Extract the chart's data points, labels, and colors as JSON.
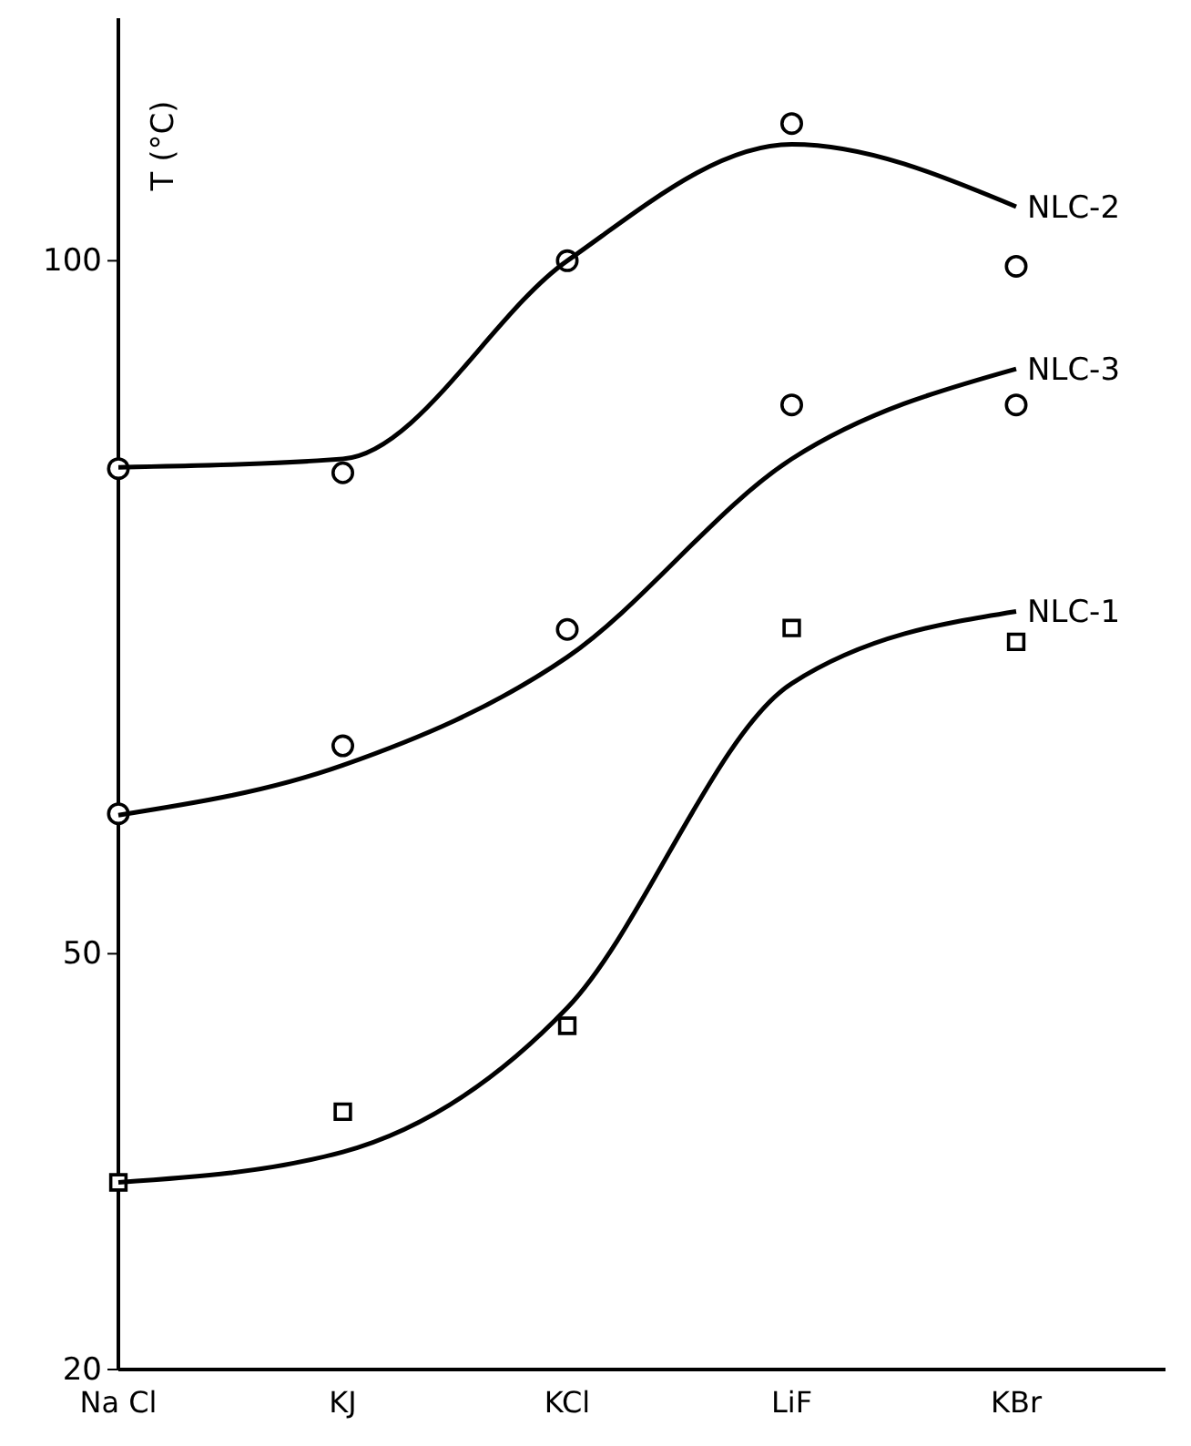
{
  "chart_data": {
    "type": "line",
    "ylabel": "T (°C)",
    "categories": [
      "Na Cl",
      "KJ",
      "KCl",
      "LiF",
      "KBr"
    ],
    "ylim": [
      20,
      117.5
    ],
    "yticks": [
      20,
      50,
      100
    ],
    "grid": false,
    "series": [
      {
        "type": "scatter",
        "marker": "circle",
        "color": "#000000",
        "values": [
          85,
          84.7,
          100,
          109.9,
          99.6
        ]
      },
      {
        "name": "NLC-2",
        "marker": "none",
        "color": "#000000",
        "values": [
          85.1,
          85.7,
          100,
          108.4,
          103.9
        ]
      },
      {
        "type": "scatter",
        "marker": "circle",
        "color": "#000000",
        "values": [
          60.1,
          65,
          73.4,
          89.6,
          89.6
        ]
      },
      {
        "name": "NLC-3",
        "marker": "none",
        "color": "#000000",
        "values": [
          60,
          63.6,
          71.4,
          85.7,
          92.2
        ]
      },
      {
        "type": "scatter",
        "marker": "square",
        "color": "#000000",
        "values": [
          33.5,
          38.6,
          44.8,
          73.5,
          72.5
        ]
      },
      {
        "name": "NLC-1",
        "marker": "none",
        "color": "#000000",
        "values": [
          33.5,
          35.7,
          46.1,
          69.5,
          74.7
        ]
      }
    ]
  }
}
